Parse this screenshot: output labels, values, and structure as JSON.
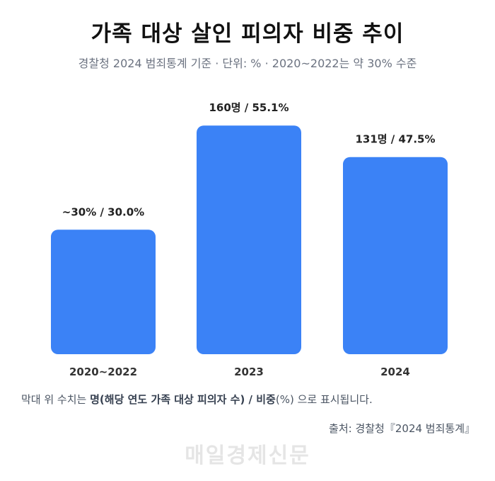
{
  "title": "가족 대상 살인 피의자 비중 추이",
  "subtitle": "경찰청 2024 범죄통계 기준 · 단위: % · 2020~2022는 약 30% 수준",
  "note": {
    "prefix": "막대 위 수치는 ",
    "bold": "명(해당 연도 가족 대상 피의자 수) / 비중",
    "suffix": "(%) 으로 표시됩니다."
  },
  "source": "출처: 경찰청『2024 범죄통계』",
  "watermark": "매일경제신문",
  "chart_data": {
    "type": "bar",
    "categories": [
      "2020~2022",
      "2023",
      "2024"
    ],
    "values": [
      30.0,
      55.1,
      47.5
    ],
    "data_labels": [
      "~30% / 30.0%",
      "160명 / 55.1%",
      "131명 / 47.5%"
    ],
    "unit": "%",
    "ylim": [
      0,
      60
    ],
    "bar_color": "#3b82f6",
    "grid": false,
    "legend": "none"
  }
}
